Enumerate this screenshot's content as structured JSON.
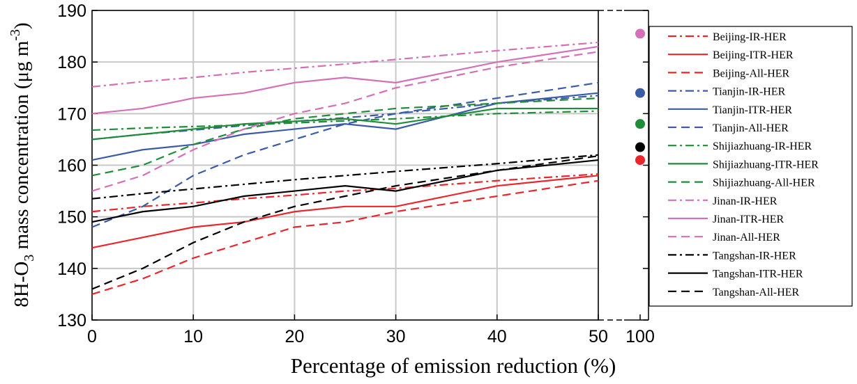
{
  "chart_data": {
    "type": "line",
    "x_label": "Percentage of emission reduction (%)",
    "y_label": [
      "8H-O",
      "3",
      " mass concentration (μg m",
      "-3",
      ")"
    ],
    "x": [
      0,
      5,
      10,
      15,
      20,
      25,
      30,
      40,
      50
    ],
    "xlim": [
      0,
      50
    ],
    "xticks": [
      0,
      10,
      20,
      30,
      40,
      50
    ],
    "ylim": [
      130,
      190
    ],
    "yticks": [
      130,
      140,
      150,
      160,
      170,
      180,
      190
    ],
    "grid": true,
    "legend": "right",
    "series": [
      {
        "name": "Beijing-IR-HER",
        "color": "#e8262c",
        "style": "dashdot",
        "values": [
          151,
          152,
          152.7,
          153.5,
          154.2,
          155,
          155.5,
          157,
          158.3
        ]
      },
      {
        "name": "Beijing-ITR-HER",
        "color": "#e8262c",
        "style": "solid",
        "values": [
          144,
          146,
          148,
          149,
          151,
          152,
          152,
          156,
          158
        ]
      },
      {
        "name": "Beijing-All-HER",
        "color": "#e8262c",
        "style": "dashed",
        "values": [
          135,
          138,
          142,
          145,
          148,
          149,
          151,
          154,
          157
        ]
      },
      {
        "name": "Tianjin-IR-HER",
        "color": "#3a5ba8",
        "style": "dashdot",
        "values": [
          165,
          166,
          166.8,
          167.7,
          168.5,
          169.2,
          170,
          172,
          173.5
        ]
      },
      {
        "name": "Tianjin-ITR-HER",
        "color": "#3a5ba8",
        "style": "solid",
        "values": [
          161,
          163,
          164,
          166,
          167,
          168,
          167,
          172,
          174
        ]
      },
      {
        "name": "Tianjin-All-HER",
        "color": "#3a5ba8",
        "style": "dashed",
        "values": [
          148,
          152,
          158,
          162,
          165,
          168,
          170,
          173,
          176
        ]
      },
      {
        "name": "Shijiazhuang-IR-HER",
        "color": "#1f8c3a",
        "style": "dashdot",
        "values": [
          166.8,
          167.2,
          167.5,
          167.8,
          168.2,
          168.6,
          169,
          170,
          170.5
        ]
      },
      {
        "name": "Shijiazhuang-ITR-HER",
        "color": "#1f8c3a",
        "style": "solid",
        "values": [
          165,
          166,
          167,
          168,
          168.5,
          169,
          168,
          171,
          171
        ]
      },
      {
        "name": "Shijiazhuang-All-HER",
        "color": "#1f8c3a",
        "style": "dashed",
        "values": [
          158,
          160,
          164,
          167,
          169,
          170,
          171,
          172,
          173
        ]
      },
      {
        "name": "Jinan-IR-HER",
        "color": "#d46fb8",
        "style": "dashdot",
        "values": [
          175.2,
          176.2,
          177,
          178,
          178.8,
          179.6,
          180.5,
          182.2,
          183.8
        ]
      },
      {
        "name": "Jinan-ITR-HER",
        "color": "#d46fb8",
        "style": "solid",
        "values": [
          170,
          171,
          173,
          174,
          176,
          177,
          176,
          180,
          183
        ]
      },
      {
        "name": "Jinan-All-HER",
        "color": "#d46fb8",
        "style": "dashed",
        "values": [
          155,
          158,
          163,
          167,
          170,
          172,
          175,
          179,
          182
        ]
      },
      {
        "name": "Tangshan-IR-HER",
        "color": "#000000",
        "style": "dashdot",
        "values": [
          153.5,
          154.5,
          155.4,
          156.3,
          157.2,
          158,
          158.8,
          160.3,
          162
        ]
      },
      {
        "name": "Tangshan-ITR-HER",
        "color": "#000000",
        "style": "solid",
        "values": [
          149,
          151,
          152,
          154,
          155,
          156,
          155,
          159,
          161
        ]
      },
      {
        "name": "Tangshan-All-HER",
        "color": "#000000",
        "style": "dashed",
        "values": [
          136,
          140,
          145,
          149,
          152,
          154,
          156,
          159,
          161.8
        ]
      }
    ],
    "x_break": {
      "xticks": [
        100
      ],
      "points": [
        {
          "color": "#d46fb8",
          "value": 185.5
        },
        {
          "color": "#3a5ba8",
          "value": 174
        },
        {
          "color": "#1f8c3a",
          "value": 168
        },
        {
          "color": "#000000",
          "value": 163.5
        },
        {
          "color": "#e8262c",
          "value": 161
        }
      ]
    }
  }
}
